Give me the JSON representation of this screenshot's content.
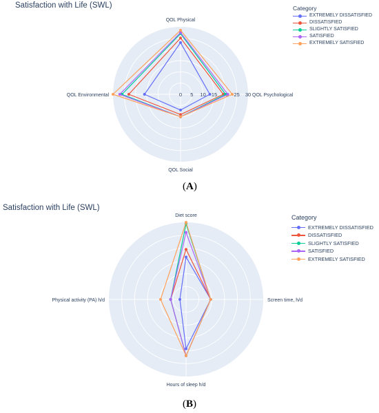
{
  "figure": {
    "panel_a_label": "A",
    "panel_b_label": "B"
  },
  "chart_data": [
    {
      "type": "radar",
      "title": "Satisfaction with Life (SWL)",
      "axes": [
        "QOL Physical",
        "QOL Psychological",
        "QOL Social",
        "QOL Environmental"
      ],
      "radial_range": [
        0,
        30
      ],
      "radial_ticks": [
        "0",
        "5",
        "10",
        "15",
        "20",
        "25",
        "30"
      ],
      "grid": true,
      "legend_title": "Category",
      "legend_position": "top-right",
      "series": [
        {
          "name": "EXTREMELY DISSATISFIED",
          "color": "#636efa",
          "values": [
            23,
            13,
            7,
            16
          ]
        },
        {
          "name": "DISSATISFIED",
          "color": "#ef553b",
          "values": [
            25,
            19,
            9,
            23
          ]
        },
        {
          "name": "SLIGHTLY SATISFIED",
          "color": "#00cc96",
          "values": [
            27,
            20,
            10,
            26
          ]
        },
        {
          "name": "SATISFIED",
          "color": "#ab63fa",
          "values": [
            27.5,
            21,
            10,
            27
          ]
        },
        {
          "name": "EXTREMELY SATISFIED",
          "color": "#ffa15a",
          "values": [
            28.5,
            23,
            10,
            31
          ]
        }
      ]
    },
    {
      "type": "radar",
      "title": "Satisfaction with Life (SWL)",
      "axes": [
        "Diet score",
        "Screen time, h/d",
        "Hours of sleep h/d",
        "Physical activity (PA) h/d"
      ],
      "radial_range": [
        0,
        10
      ],
      "grid": true,
      "legend_title": "Category",
      "legend_position": "top-right",
      "series": [
        {
          "name": "EXTREMELY DISSATISFIED",
          "color": "#636efa",
          "values": [
            5.5,
            3.2,
            6.4,
            0.8
          ]
        },
        {
          "name": "DISSATISFIED",
          "color": "#ef553b",
          "values": [
            6.5,
            3.2,
            7.3,
            2.0
          ]
        },
        {
          "name": "SLIGHTLY SATISFIED",
          "color": "#00cc96",
          "values": [
            9.8,
            3.2,
            7.3,
            2.0
          ]
        },
        {
          "name": "SATISFIED",
          "color": "#ab63fa",
          "values": [
            8.7,
            3.2,
            7.3,
            2.0
          ]
        },
        {
          "name": "EXTREMELY SATISFIED",
          "color": "#ffa15a",
          "values": [
            10,
            3.2,
            7.3,
            3.3
          ]
        }
      ]
    }
  ]
}
